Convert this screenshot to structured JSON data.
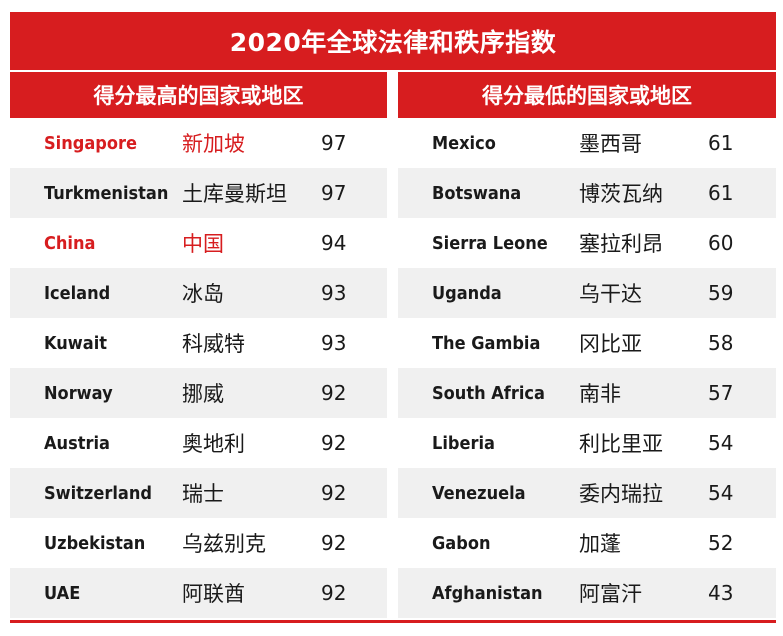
{
  "title": "2020年全球法律和秩序指数",
  "left": {
    "header": "得分最高的国家或地区",
    "rows": [
      {
        "en": "Singapore",
        "zh": "新加坡",
        "score": "97",
        "highlight": true
      },
      {
        "en": "Turkmenistan",
        "zh": "土库曼斯坦",
        "score": "97",
        "highlight": false
      },
      {
        "en": "China",
        "zh": "中国",
        "score": "94",
        "highlight": true
      },
      {
        "en": "Iceland",
        "zh": "冰岛",
        "score": "93",
        "highlight": false
      },
      {
        "en": "Kuwait",
        "zh": "科威特",
        "score": "93",
        "highlight": false
      },
      {
        "en": "Norway",
        "zh": "挪威",
        "score": "92",
        "highlight": false
      },
      {
        "en": "Austria",
        "zh": "奥地利",
        "score": "92",
        "highlight": false
      },
      {
        "en": "Switzerland",
        "zh": "瑞士",
        "score": "92",
        "highlight": false
      },
      {
        "en": "Uzbekistan",
        "zh": "乌兹别克",
        "score": "92",
        "highlight": false
      },
      {
        "en": "UAE",
        "zh": "阿联酋",
        "score": "92",
        "highlight": false
      }
    ]
  },
  "right": {
    "header": "得分最低的国家或地区",
    "rows": [
      {
        "en": "Mexico",
        "zh": "墨西哥",
        "score": "61",
        "highlight": false
      },
      {
        "en": "Botswana",
        "zh": "博茨瓦纳",
        "score": "61",
        "highlight": false
      },
      {
        "en": "Sierra Leone",
        "zh": "塞拉利昂",
        "score": "60",
        "highlight": false
      },
      {
        "en": "Uganda",
        "zh": "乌干达",
        "score": "59",
        "highlight": false
      },
      {
        "en": "The Gambia",
        "zh": "冈比亚",
        "score": "58",
        "highlight": false
      },
      {
        "en": "South Africa",
        "zh": "南非",
        "score": "57",
        "highlight": false
      },
      {
        "en": "Liberia",
        "zh": "利比里亚",
        "score": "54",
        "highlight": false
      },
      {
        "en": "Venezuela",
        "zh": "委内瑞拉",
        "score": "54",
        "highlight": false
      },
      {
        "en": "Gabon",
        "zh": "加蓬",
        "score": "52",
        "highlight": false
      },
      {
        "en": "Afghanistan",
        "zh": "阿富汗",
        "score": "43",
        "highlight": false
      }
    ]
  },
  "colors": {
    "accent": "#d71d1f",
    "text": "#1a1a1a",
    "stripe": "#f0f0f0"
  }
}
